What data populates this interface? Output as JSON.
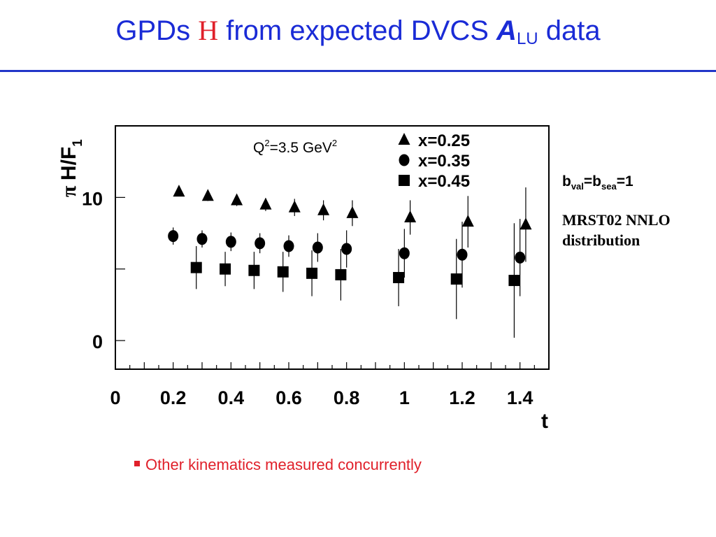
{
  "title": {
    "prefix": "GPDs",
    "h_symbol": "H",
    "middle": "from expected DVCS",
    "a_symbol": "A",
    "a_sub": "LU",
    "suffix": "data"
  },
  "side_note": {
    "b_val_label": "b",
    "b_val_sub": "val",
    "b_eq": "=b",
    "b_sea_sub": "sea",
    "b_value": "=1",
    "mrst_line1": "MRST02 NNLO",
    "mrst_line2": "distribution"
  },
  "bullet": {
    "text": "Other kinematics measured concurrently"
  },
  "chart_data": {
    "type": "scatter",
    "title": "",
    "annotation": {
      "base": "Q",
      "sup1": "2",
      "mid": "=3.5 GeV",
      "sup2": "2"
    },
    "ylabel": {
      "pi": "π",
      "text": "H/F",
      "sub": "1"
    },
    "xlabel": "t",
    "xlim": [
      0,
      1.5
    ],
    "ylim": [
      -2,
      15
    ],
    "x_ticks": [
      0,
      0.2,
      0.4,
      0.6,
      0.8,
      1,
      1.2,
      1.4
    ],
    "x_tick_labels": [
      "0",
      "0.2",
      "0.4",
      "0.6",
      "0.8",
      "1",
      "1.2",
      "1.4"
    ],
    "y_ticks": [
      0,
      10
    ],
    "y_tick_labels": [
      "0",
      "10"
    ],
    "legend_position": "top-right",
    "series": [
      {
        "name": "x=0.25",
        "marker": "triangle",
        "x": [
          0.22,
          0.32,
          0.42,
          0.52,
          0.62,
          0.72,
          0.82,
          1.02,
          1.22,
          1.42
        ],
        "y": [
          10.4,
          10.1,
          9.8,
          9.5,
          9.3,
          9.1,
          8.9,
          8.6,
          8.3,
          8.1
        ],
        "err": [
          0.3,
          0.35,
          0.4,
          0.45,
          0.6,
          0.7,
          0.9,
          1.2,
          1.8,
          2.6
        ]
      },
      {
        "name": "x=0.35",
        "marker": "circle",
        "x": [
          0.2,
          0.3,
          0.4,
          0.5,
          0.6,
          0.7,
          0.8,
          1.0,
          1.2,
          1.4
        ],
        "y": [
          7.3,
          7.1,
          6.9,
          6.8,
          6.6,
          6.5,
          6.4,
          6.1,
          6.0,
          5.8
        ],
        "err": [
          0.6,
          0.6,
          0.65,
          0.7,
          0.75,
          1.0,
          1.3,
          1.7,
          2.3,
          2.7
        ]
      },
      {
        "name": "x=0.45",
        "marker": "square",
        "x": [
          0.28,
          0.38,
          0.48,
          0.58,
          0.68,
          0.78,
          0.98,
          1.18,
          1.38
        ],
        "y": [
          5.1,
          5.0,
          4.9,
          4.8,
          4.7,
          4.6,
          4.4,
          4.3,
          4.2
        ],
        "err": [
          1.5,
          1.2,
          1.3,
          1.4,
          1.6,
          1.8,
          2.0,
          2.8,
          4.0
        ]
      }
    ]
  }
}
